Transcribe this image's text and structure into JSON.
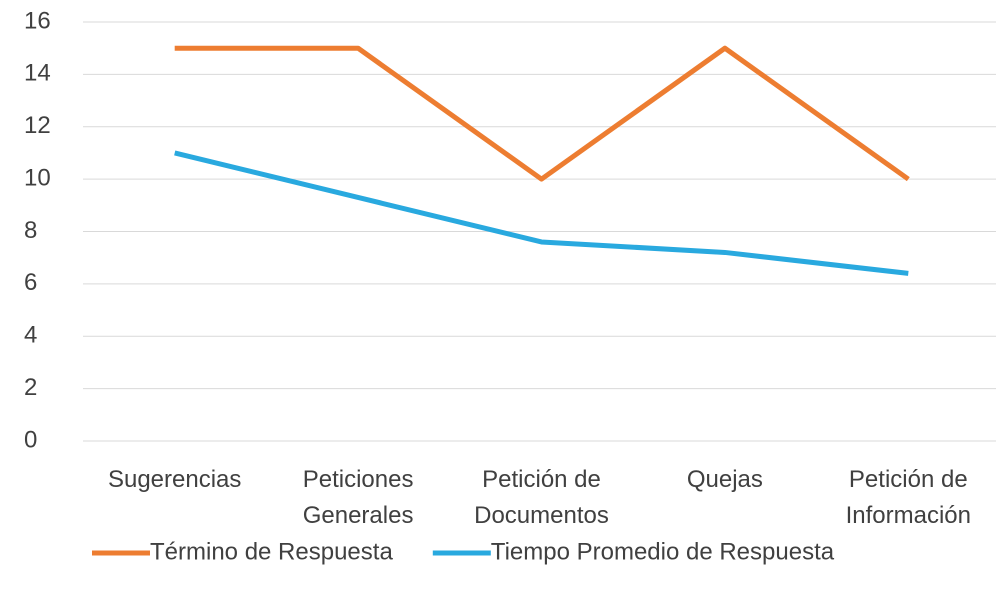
{
  "chart_data": {
    "type": "line",
    "categories": [
      "Sugerencias",
      "Peticiones Generales",
      "Petición de Documentos",
      "Quejas",
      "Petición de Información"
    ],
    "series": [
      {
        "name": "Término de Respuesta",
        "color": "#ed7d31",
        "values": [
          15,
          15,
          10,
          15,
          10
        ]
      },
      {
        "name": "Tiempo Promedio de Respuesta",
        "color": "#29a9df",
        "values": [
          11,
          9.3,
          7.6,
          7.2,
          6.4
        ]
      }
    ],
    "ylim": [
      0,
      16
    ],
    "yticks": [
      0,
      2,
      4,
      6,
      8,
      10,
      12,
      14,
      16
    ],
    "grid": true,
    "legend": "bottom"
  }
}
